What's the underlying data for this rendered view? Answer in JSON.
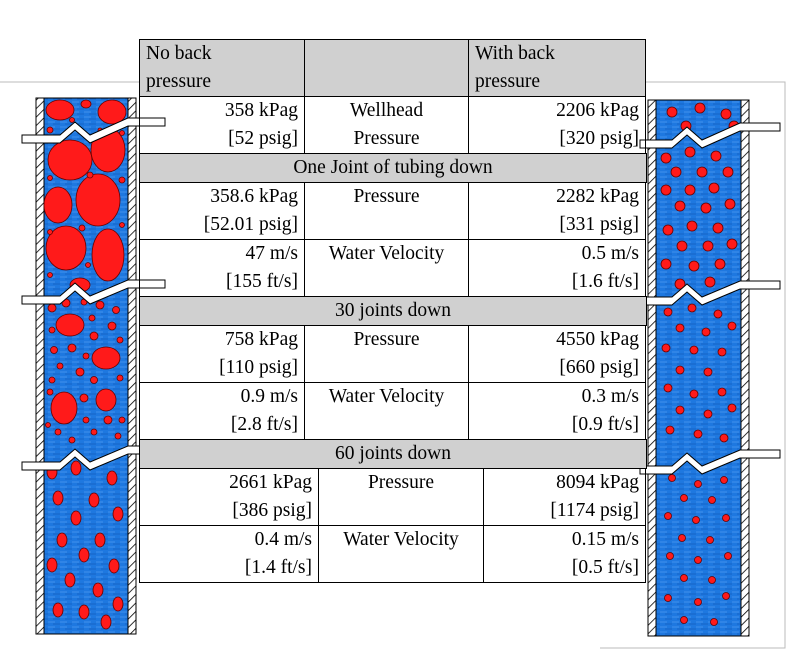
{
  "header": {
    "col1": [
      "No back",
      "pressure"
    ],
    "col3": [
      "With back",
      "pressure"
    ]
  },
  "wellhead": {
    "left": [
      "358 kPag",
      "[52 psig]"
    ],
    "label": [
      "Wellhead",
      "Pressure"
    ],
    "right": [
      "2206 kPag",
      "[320 psig]"
    ]
  },
  "section1": {
    "title": "One Joint of tubing down",
    "pressure": {
      "left": [
        "358.6 kPag",
        "[52.01 psig]"
      ],
      "label": "Pressure",
      "right": [
        "2282 kPag",
        "[331 psig]"
      ]
    },
    "velocity": {
      "left": [
        "47 m/s",
        "[155 ft/s]"
      ],
      "label": "Water Velocity",
      "right": [
        "0.5 m/s",
        "[1.6 ft/s]"
      ]
    }
  },
  "section2": {
    "title": "30 joints down",
    "pressure": {
      "left": [
        "758 kPag",
        "[110 psig]"
      ],
      "label": "Pressure",
      "right": [
        "4550 kPag",
        "[660 psig]"
      ]
    },
    "velocity": {
      "left": [
        "0.9 m/s",
        "[2.8 ft/s]"
      ],
      "label": "Water Velocity",
      "right": [
        "0.3 m/s",
        "[0.9 ft/s]"
      ]
    }
  },
  "section3": {
    "title": "60 joints down",
    "pressure": {
      "left": [
        "2661 kPag",
        "[386 psig]"
      ],
      "label": "Pressure",
      "right": [
        "8094 kPag",
        "[1174 psig]"
      ]
    },
    "velocity": {
      "left": [
        "0.4 m/s",
        "[1.4 ft/s]"
      ],
      "label": "Water Velocity",
      "right": [
        "0.15 m/s",
        "[0.5 ft/s]"
      ]
    }
  },
  "colors": {
    "water": "#1e78e0",
    "gas": "#ff1a1a",
    "cell_gray": "#d0d0d0"
  }
}
